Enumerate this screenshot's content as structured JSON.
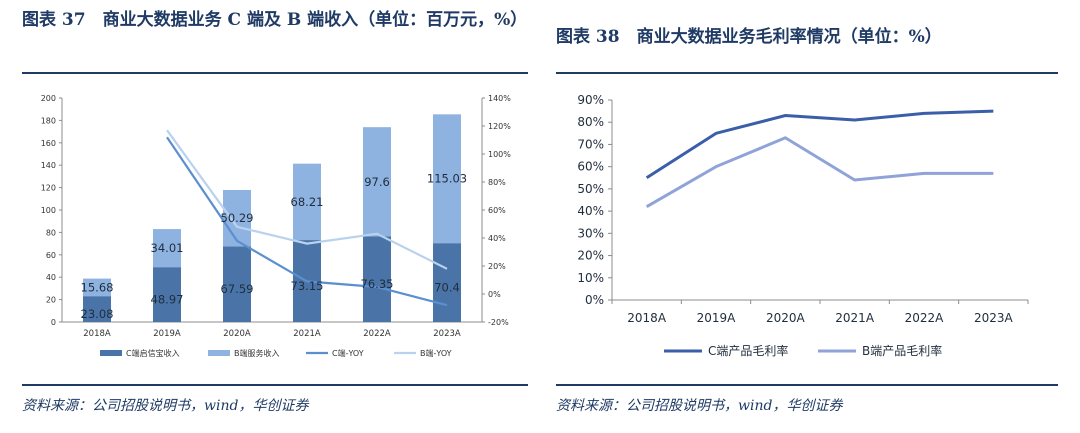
{
  "left": {
    "title": "图表 37　商业大数据业务 C 端及 B 端收入（单位：百万元，%）",
    "source": "资料来源：公司招股说明书，wind，华创证券",
    "chart_data": {
      "type": "bar",
      "stacked": true,
      "categories": [
        "2018A",
        "2019A",
        "2020A",
        "2021A",
        "2022A",
        "2023A"
      ],
      "series": [
        {
          "name": "C端启信宝收入",
          "values": [
            23.08,
            48.97,
            67.59,
            73.15,
            76.35,
            70.4
          ],
          "color": "#4a74a8",
          "axis": "left"
        },
        {
          "name": "B端服务收入",
          "values": [
            15.68,
            34.01,
            50.29,
            68.21,
            97.6,
            115.03
          ],
          "color": "#8fb3e0",
          "axis": "left"
        }
      ],
      "lines": [
        {
          "name": "C端-YOY",
          "values": [
            null,
            112,
            38,
            9,
            5,
            -8
          ],
          "color": "#5b8fd0",
          "axis": "right"
        },
        {
          "name": "B端-YOY",
          "values": [
            null,
            117,
            48,
            36,
            43,
            18
          ],
          "color": "#b9d2ee",
          "axis": "right"
        }
      ],
      "ylim": [
        0,
        200
      ],
      "yticks": [
        0,
        20,
        40,
        60,
        80,
        100,
        120,
        140,
        160,
        180,
        200
      ],
      "y2lim": [
        -20,
        140
      ],
      "y2ticks": [
        -20,
        0,
        20,
        40,
        60,
        80,
        100,
        120,
        140
      ],
      "y2format": "%",
      "legend_position": "bottom",
      "grid": false
    }
  },
  "right": {
    "title": "图表 38　商业大数据业务毛利率情况（单位：%）",
    "source": "资料来源：公司招股说明书，wind，华创证券",
    "chart_data": {
      "type": "line",
      "categories": [
        "2018A",
        "2019A",
        "2020A",
        "2021A",
        "2022A",
        "2023A"
      ],
      "series": [
        {
          "name": "C端产品毛利率",
          "values": [
            55,
            75,
            83,
            81,
            84,
            85
          ],
          "color": "#3a5ea8"
        },
        {
          "name": "B端产品毛利率",
          "values": [
            42,
            60,
            73,
            54,
            57,
            57
          ],
          "color": "#8fa3d8"
        }
      ],
      "ylim": [
        0,
        90
      ],
      "yticks": [
        0,
        10,
        20,
        30,
        40,
        50,
        60,
        70,
        80,
        90
      ],
      "yformat": "%",
      "legend_position": "bottom",
      "grid": false
    }
  }
}
